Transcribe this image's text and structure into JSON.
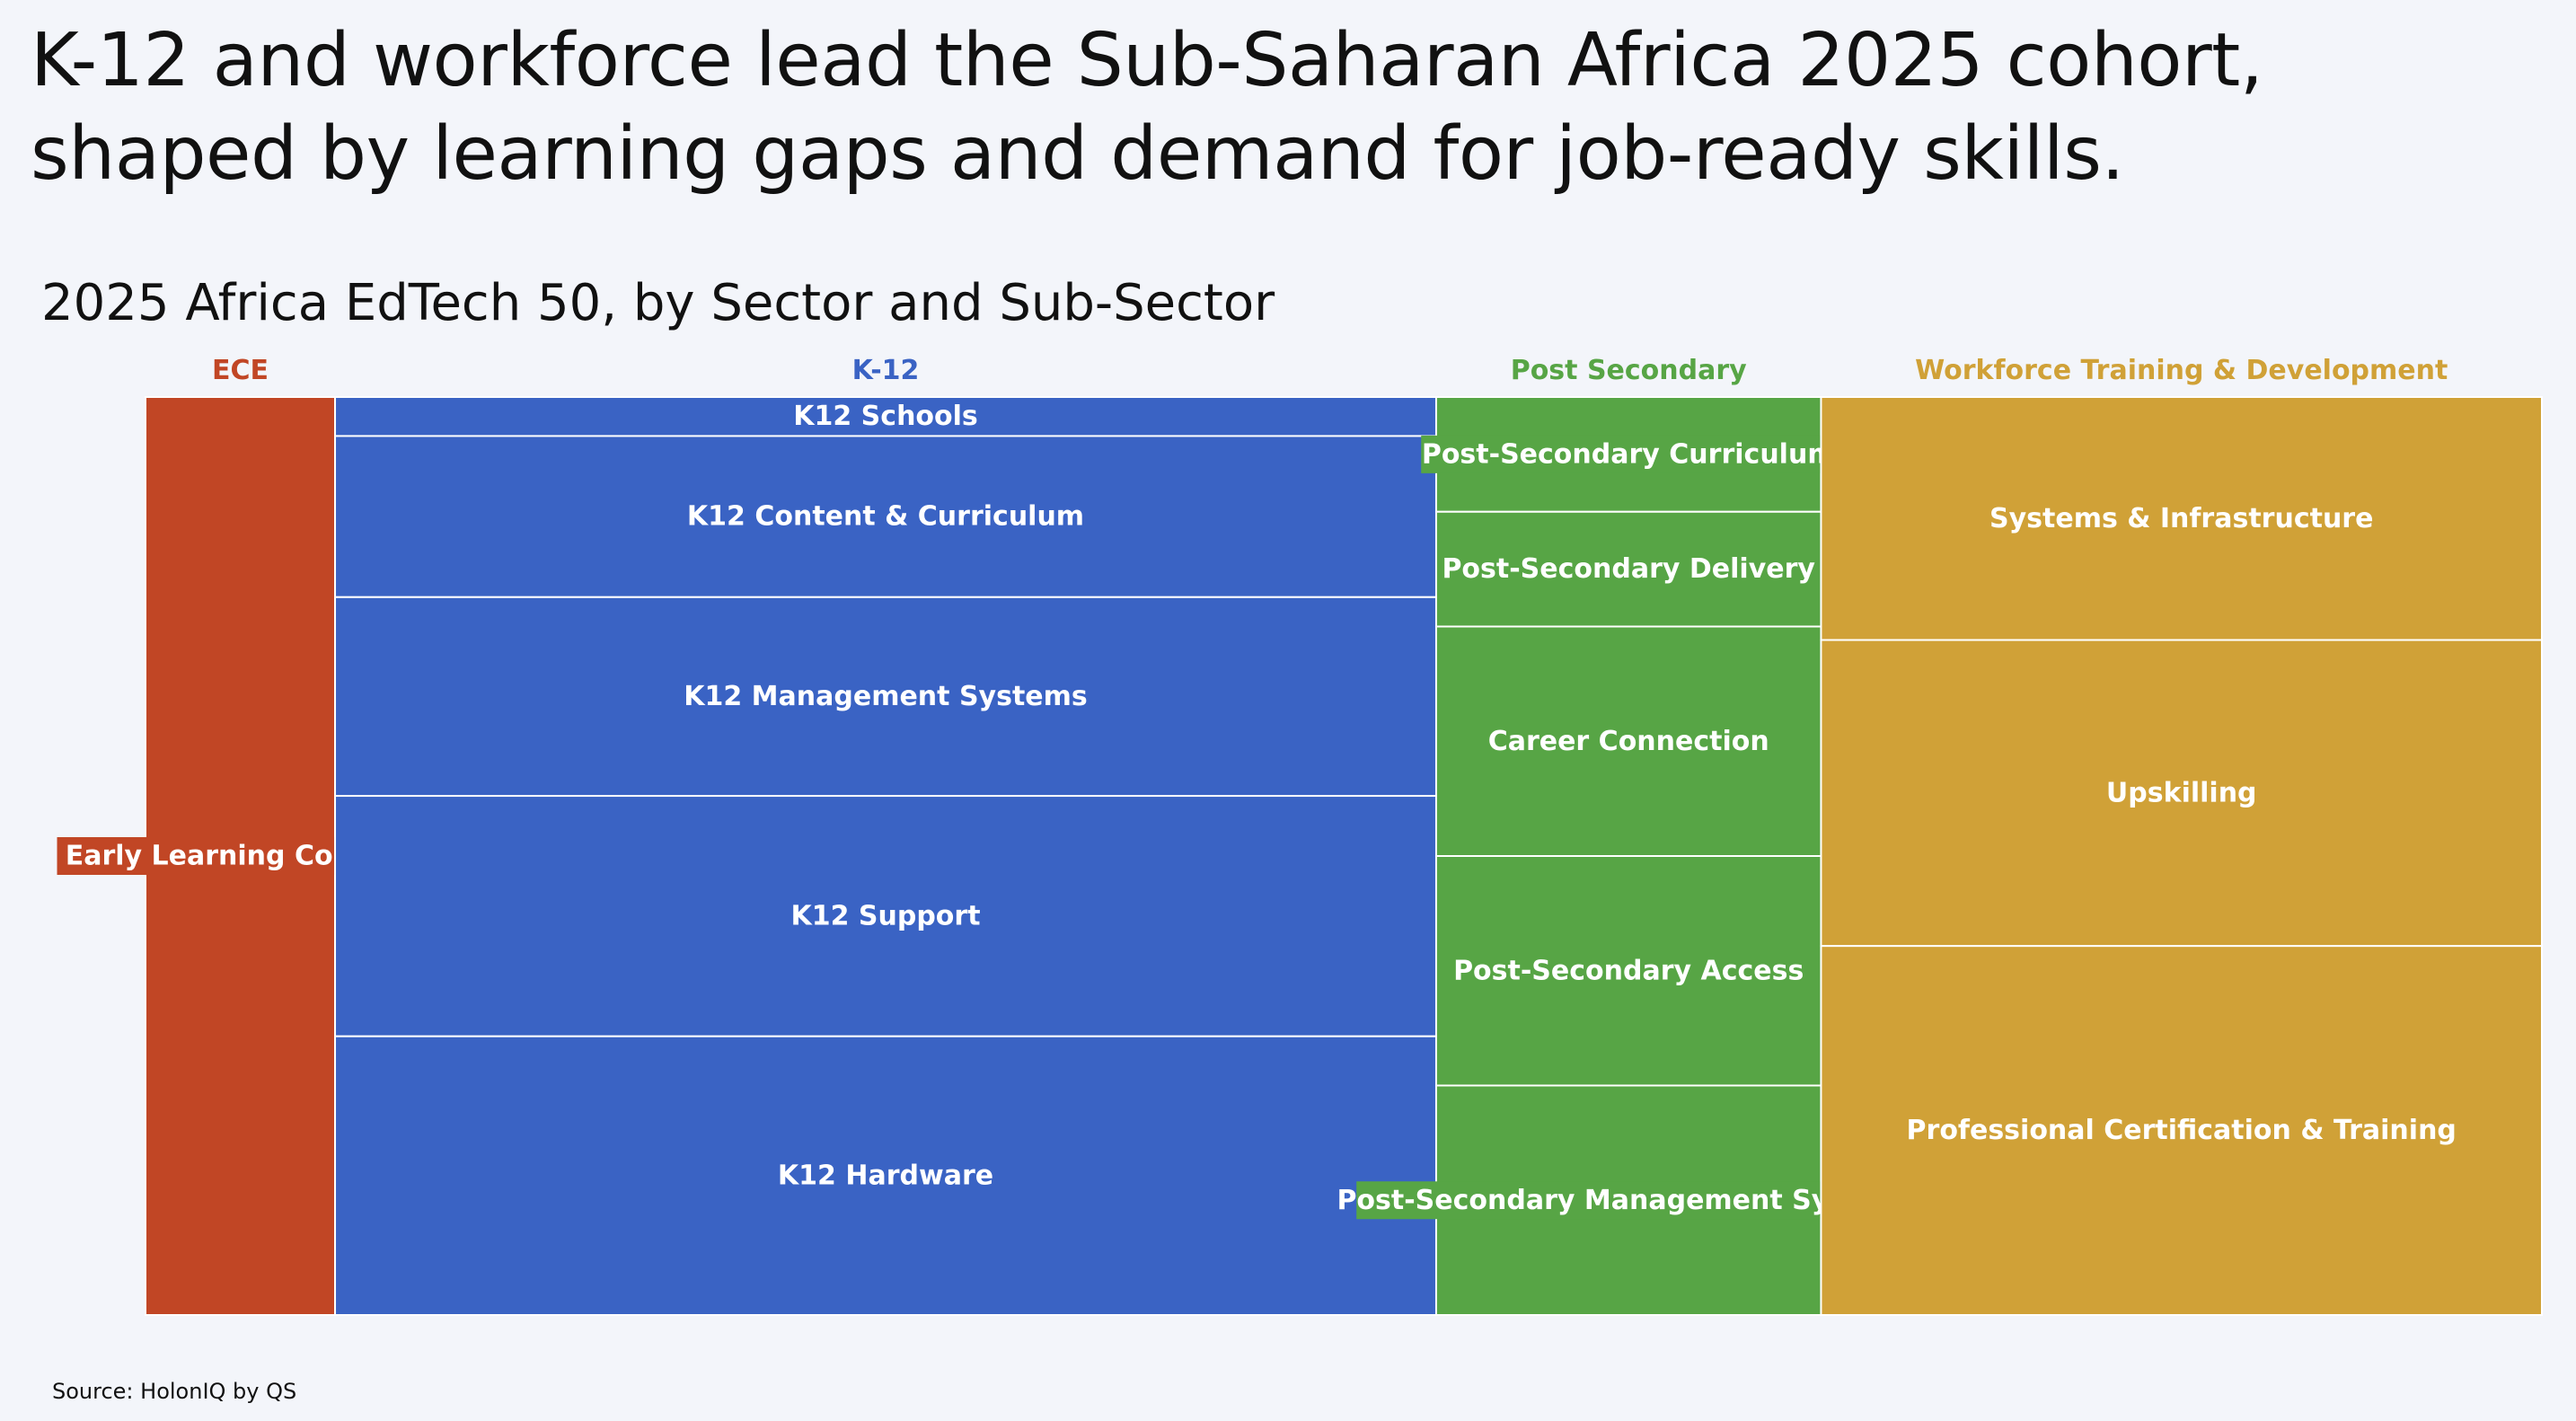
{
  "headline": "K-12 and workforce lead the Sub-Saharan Africa 2025 cohort, shaped by learning gaps and demand for job-ready skills.",
  "source": "Source: HolonIQ by QS",
  "chart_data": {
    "type": "mekko",
    "title": "2025 Africa EdTech 50, by Sector and Sub-Sector",
    "sectors": [
      {
        "name": "ECE",
        "color": "#c14625",
        "share": 0.0791,
        "sub_sectors": [
          {
            "name": "Early Learning Content",
            "share": 1.0
          }
        ]
      },
      {
        "name": "K-12",
        "color": "#3a63c4",
        "share": 0.4595,
        "sub_sectors": [
          {
            "name": "K12 Schools",
            "share": 0.0425
          },
          {
            "name": "K12 Content & Curriculum",
            "share": 0.1755
          },
          {
            "name": "K12 Management Systems",
            "share": 0.2165
          },
          {
            "name": "K12 Support",
            "share": 0.2619
          },
          {
            "name": "K12 Hardware",
            "share": 0.3036
          }
        ]
      },
      {
        "name": "Post Secondary",
        "color": "#57a545",
        "share": 0.1606,
        "sub_sectors": [
          {
            "name": "Post-Secondary Curriculum",
            "share": 0.125
          },
          {
            "name": "Post-Secondary Delivery",
            "share": 0.125
          },
          {
            "name": "Career Connection",
            "share": 0.25
          },
          {
            "name": "Post-Secondary Access",
            "share": 0.25
          },
          {
            "name": "Post-Secondary Management Systems",
            "share": 0.25
          }
        ]
      },
      {
        "name": "Workforce Training & Development",
        "color": "#d0a137",
        "share": 0.3008,
        "sub_sectors": [
          {
            "name": "Systems & Infrastructure",
            "share": 0.2647
          },
          {
            "name": "Upskilling",
            "share": 0.3333
          },
          {
            "name": "Professional Certification & Training",
            "share": 0.402
          }
        ]
      }
    ]
  }
}
